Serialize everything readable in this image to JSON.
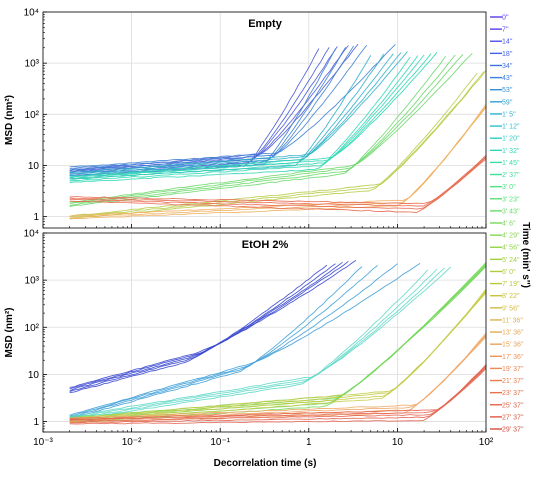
{
  "chart_data": [
    {
      "type": "line",
      "title": "Empty",
      "xlabel": "",
      "ylabel": "MSD (nm²)",
      "xscale": "log",
      "yscale": "log",
      "xlim": [
        0.001,
        100
      ],
      "ylim": [
        0.6,
        10000
      ],
      "xticks": [
        "10⁻³",
        "10⁻²",
        "10⁻¹",
        "1",
        "10",
        "10²"
      ],
      "yticks": [
        "1",
        "10",
        "10²",
        "10³",
        "10⁴"
      ],
      "grid": true,
      "series_groups": [
        {
          "color": "#4a5ad8",
          "count": 5,
          "x_start": 0.002,
          "x_end": [
            1.3,
            1.7,
            2.1,
            2.8,
            3.6
          ],
          "y_start": 7.5,
          "knee_x": 0.25,
          "knee_y": 14,
          "y_end": 2200
        },
        {
          "color": "#3c80d4",
          "count": 5,
          "x_start": 0.002,
          "x_end": [
            2.0,
            2.6,
            3.2,
            4.5,
            9.5
          ],
          "y_start": 8.5,
          "knee_x": 0.4,
          "knee_y": 15,
          "y_end": 2200
        },
        {
          "color": "#2fb0c8",
          "count": 5,
          "x_start": 0.002,
          "x_end": [
            5.0,
            7.0,
            9.0,
            11,
            13
          ],
          "y_start": 6.5,
          "knee_x": 0.9,
          "knee_y": 14,
          "y_end": 1600
        },
        {
          "color": "#30d8b4",
          "count": 5,
          "x_start": 0.002,
          "x_end": [
            14,
            17,
            20,
            24,
            28
          ],
          "y_start": 5.5,
          "knee_x": 1.6,
          "knee_y": 12,
          "y_end": 1500
        },
        {
          "color": "#6cd86a",
          "count": 4,
          "x_start": 0.002,
          "x_end": [
            35,
            45,
            55,
            70
          ],
          "y_start": 1.8,
          "knee_x": 3.0,
          "knee_y": 9,
          "y_end": 1500
        },
        {
          "color": "#b8cc48",
          "count": 3,
          "x_start": 0.002,
          "x_end": [
            80,
            95,
            100
          ],
          "y_start": 1.0,
          "knee_x": 6.0,
          "knee_y": 4,
          "y_end": 700
        },
        {
          "color": "#f0b060",
          "count": 3,
          "x_start": 0.002,
          "x_end": [
            100,
            100,
            100
          ],
          "y_start": 1.0,
          "knee_x": 12,
          "knee_y": 2,
          "y_end": 150
        },
        {
          "color": "#e86a50",
          "count": 4,
          "x_start": 0.002,
          "x_end": [
            100,
            100,
            100,
            100
          ],
          "y_start": 2.3,
          "knee_x": 20,
          "knee_y": 1.6,
          "y_end": 15
        }
      ]
    },
    {
      "type": "line",
      "title": "EtOH 2%",
      "xlabel": "Decorrelation time (s)",
      "ylabel": "MSD (nm²)",
      "xscale": "log",
      "yscale": "log",
      "xlim": [
        0.001,
        100
      ],
      "ylim": [
        0.6,
        10000
      ],
      "xticks": [
        "10⁻³",
        "10⁻²",
        "10⁻¹",
        "1",
        "10",
        "10²"
      ],
      "yticks": [
        "1",
        "10",
        "10²",
        "10³",
        "10⁴"
      ],
      "grid": true,
      "series_groups": [
        {
          "color": "#3a48d0",
          "count": 5,
          "x_start": 0.002,
          "x_end": [
            1.6,
            2.0,
            2.4,
            2.8,
            3.4
          ],
          "y_start": 4.8,
          "knee_x": 0.05,
          "knee_y": 25,
          "y_end": 2400
        },
        {
          "color": "#3fa0d8",
          "count": 4,
          "x_start": 0.002,
          "x_end": [
            4.0,
            6.0,
            10,
            18
          ],
          "y_start": 1.3,
          "knee_x": 0.2,
          "knee_y": 15,
          "y_end": 2200
        },
        {
          "color": "#60d8c8",
          "count": 4,
          "x_start": 0.002,
          "x_end": [
            22,
            28,
            34,
            40
          ],
          "y_start": 1.2,
          "knee_x": 1.0,
          "knee_y": 8,
          "y_end": 1800
        },
        {
          "color": "#74d85a",
          "count": 5,
          "x_start": 0.002,
          "x_end": [
            100,
            100,
            100,
            100,
            100
          ],
          "y_start": 1.1,
          "knee_x": 2.0,
          "knee_y": 3,
          "y_end": 2200
        },
        {
          "color": "#c4cc48",
          "count": 4,
          "x_start": 0.002,
          "x_end": [
            100,
            100,
            100,
            100
          ],
          "y_start": 1.1,
          "knee_x": 8.0,
          "knee_y": 4,
          "y_end": 600
        },
        {
          "color": "#f0a868",
          "count": 4,
          "x_start": 0.002,
          "x_end": [
            100,
            100,
            100,
            100
          ],
          "y_start": 1.1,
          "knee_x": 15,
          "knee_y": 2,
          "y_end": 70
        },
        {
          "color": "#e46450",
          "count": 5,
          "x_start": 0.002,
          "x_end": [
            100,
            100,
            100,
            100,
            100
          ],
          "y_start": 1.05,
          "knee_x": 25,
          "knee_y": 1.5,
          "y_end": 15
        }
      ]
    }
  ],
  "legend": {
    "title": "Time (min' s'')",
    "entries": [
      {
        "label": "0''",
        "color": "#5a3cf0"
      },
      {
        "label": "7''",
        "color": "#5544ee"
      },
      {
        "label": "14''",
        "color": "#4e52ea"
      },
      {
        "label": "18''",
        "color": "#4660e6"
      },
      {
        "label": "34''",
        "color": "#3f70e2"
      },
      {
        "label": "43''",
        "color": "#3a80de"
      },
      {
        "label": "53''",
        "color": "#3590d8"
      },
      {
        "label": "59''",
        "color": "#30a2d4"
      },
      {
        "label": "1' 5''",
        "color": "#2cb2d0"
      },
      {
        "label": "1' 12''",
        "color": "#2ac2cc"
      },
      {
        "label": "1' 20''",
        "color": "#2cd0c4"
      },
      {
        "label": "1' 32''",
        "color": "#30dab8"
      },
      {
        "label": "1' 45''",
        "color": "#38dea8"
      },
      {
        "label": "2' 37''",
        "color": "#40e098"
      },
      {
        "label": "3' 0''",
        "color": "#4ce088"
      },
      {
        "label": "3' 23''",
        "color": "#5ade78"
      },
      {
        "label": "3' 43''",
        "color": "#68dc68"
      },
      {
        "label": "4' 6''",
        "color": "#76d85a"
      },
      {
        "label": "4' 29''",
        "color": "#84d650"
      },
      {
        "label": "4' 56''",
        "color": "#92d448"
      },
      {
        "label": "5' 24''",
        "color": "#a0d040"
      },
      {
        "label": "6' 0''",
        "color": "#aecc3c"
      },
      {
        "label": "7' 19''",
        "color": "#bcc83a"
      },
      {
        "label": "8' 22''",
        "color": "#c8c23c"
      },
      {
        "label": "9' 56''",
        "color": "#d4bc42"
      },
      {
        "label": "11' 36''",
        "color": "#deb44a"
      },
      {
        "label": "13' 36''",
        "color": "#e6aa54"
      },
      {
        "label": "15' 36''",
        "color": "#eca05a"
      },
      {
        "label": "17' 36''",
        "color": "#ee9458"
      },
      {
        "label": "19' 37''",
        "color": "#ee8854"
      },
      {
        "label": "21' 37''",
        "color": "#ec7c50"
      },
      {
        "label": "23' 37''",
        "color": "#e8704c"
      },
      {
        "label": "25' 37''",
        "color": "#e46448"
      },
      {
        "label": "27' 37''",
        "color": "#de5844"
      },
      {
        "label": "29' 37''",
        "color": "#d84c40"
      }
    ]
  }
}
